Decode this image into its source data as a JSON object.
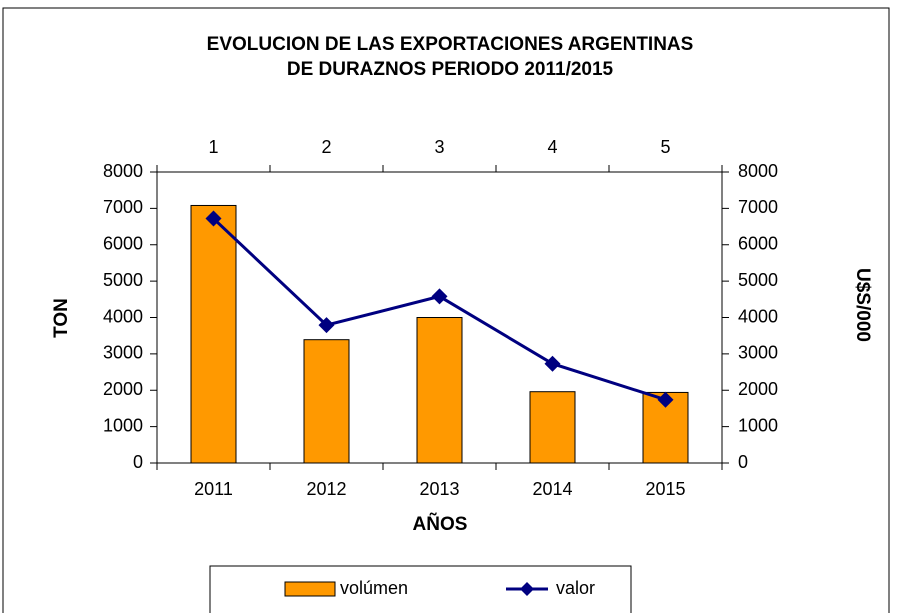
{
  "chart_data": {
    "type": "bar",
    "title": [
      "EVOLUCION  DE LAS EXPORTACIONES ARGENTINAS",
      "DE DURAZNOS  PERIODO 2011/2015"
    ],
    "xlabel": "AÑOS",
    "ylabel": "TON",
    "y2label": "U$S/000",
    "categories": [
      "2011",
      "2012",
      "2013",
      "2014",
      "2015"
    ],
    "top_categories": [
      1,
      2,
      3,
      4,
      5
    ],
    "series": [
      {
        "name": "volúmen",
        "type": "bar",
        "color": "#FF9900",
        "values": [
          7080,
          3390,
          4000,
          1960,
          1940
        ]
      },
      {
        "name": "valor",
        "type": "line",
        "color": "#000080",
        "axis": "y2",
        "values": [
          6720,
          3790,
          4580,
          2730,
          1740
        ]
      }
    ],
    "ylim": [
      0,
      8000
    ],
    "yticks": [
      0,
      1000,
      2000,
      3000,
      4000,
      5000,
      6000,
      7000,
      8000
    ],
    "y2lim": [
      0,
      8000
    ],
    "y2ticks": [
      0,
      1000,
      2000,
      3000,
      4000,
      5000,
      6000,
      7000,
      8000
    ],
    "grid": false,
    "legend": "bottom"
  }
}
